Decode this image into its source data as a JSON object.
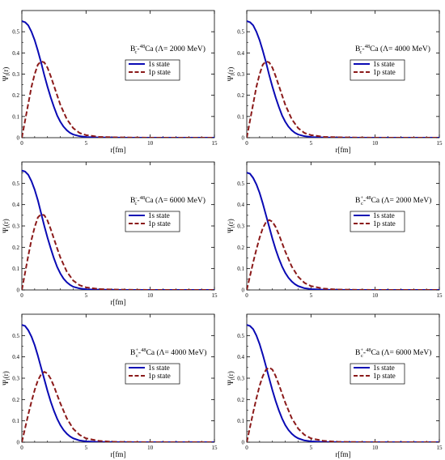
{
  "chart_data": [
    {
      "type": "line",
      "annotation": {
        "base": "B",
        "sup1": "-",
        "sub": "c",
        "mid": "-",
        "sup2": "48",
        "rest": "Ca (Λ= 2000 MeV)"
      },
      "xlabel": "r[fm]",
      "ylabel": {
        "main": "Ψ",
        "sub": "l",
        "rest": "(r)"
      },
      "xlim": [
        0,
        15
      ],
      "ylim": [
        0,
        0.6
      ],
      "xticks": [
        "0",
        "5",
        "10",
        "15"
      ],
      "yticks": [
        "0",
        "0.1",
        "0.2",
        "0.3",
        "0.4",
        "0.5"
      ],
      "legend_position": "right-middle",
      "series": [
        {
          "name": "1s state",
          "color": "#0a0ab4",
          "dash": "solid",
          "x": [
            0,
            0.25,
            0.5,
            0.75,
            1,
            1.25,
            1.5,
            1.75,
            2,
            2.25,
            2.5,
            2.75,
            3,
            3.25,
            3.5,
            3.75,
            4,
            4.5,
            5,
            6,
            8,
            10,
            15
          ],
          "values": [
            0.55,
            0.545,
            0.53,
            0.5,
            0.46,
            0.41,
            0.355,
            0.295,
            0.24,
            0.19,
            0.145,
            0.105,
            0.075,
            0.052,
            0.035,
            0.023,
            0.015,
            0.007,
            0.003,
            0.001,
            0,
            0,
            0
          ]
        },
        {
          "name": "1p state",
          "color": "#8b1a1a",
          "dash": "dashed",
          "x": [
            0,
            0.25,
            0.5,
            0.75,
            1,
            1.25,
            1.5,
            1.75,
            2,
            2.25,
            2.5,
            2.75,
            3,
            3.5,
            4,
            4.5,
            5,
            6,
            7,
            8,
            10,
            15
          ],
          "values": [
            0,
            0.08,
            0.16,
            0.24,
            0.3,
            0.345,
            0.36,
            0.355,
            0.33,
            0.29,
            0.245,
            0.2,
            0.155,
            0.088,
            0.045,
            0.022,
            0.012,
            0.004,
            0.002,
            0.001,
            0,
            0
          ]
        }
      ]
    },
    {
      "type": "line",
      "annotation": {
        "base": "B",
        "sup1": "-",
        "sub": "c",
        "mid": "-",
        "sup2": "48",
        "rest": "Ca (Λ= 4000 MeV)"
      },
      "xlabel": "r[fm]",
      "ylabel": {
        "main": "Ψ",
        "sub": "l",
        "rest": "(r)"
      },
      "xlim": [
        0,
        15
      ],
      "ylim": [
        0,
        0.6
      ],
      "xticks": [
        "0",
        "5",
        "10",
        "15"
      ],
      "yticks": [
        "0",
        "0.1",
        "0.2",
        "0.3",
        "0.4",
        "0.5"
      ],
      "legend_position": "right-middle",
      "series": [
        {
          "name": "1s state",
          "color": "#0a0ab4",
          "dash": "solid",
          "x": [
            0,
            0.25,
            0.5,
            0.75,
            1,
            1.25,
            1.5,
            1.75,
            2,
            2.25,
            2.5,
            2.75,
            3,
            3.25,
            3.5,
            3.75,
            4,
            4.5,
            5,
            6,
            8,
            10,
            15
          ],
          "values": [
            0.55,
            0.545,
            0.53,
            0.5,
            0.46,
            0.41,
            0.355,
            0.295,
            0.24,
            0.19,
            0.145,
            0.105,
            0.075,
            0.052,
            0.035,
            0.023,
            0.015,
            0.007,
            0.003,
            0.001,
            0,
            0,
            0
          ]
        },
        {
          "name": "1p state",
          "color": "#8b1a1a",
          "dash": "dashed",
          "x": [
            0,
            0.25,
            0.5,
            0.75,
            1,
            1.25,
            1.5,
            1.75,
            2,
            2.25,
            2.5,
            2.75,
            3,
            3.5,
            4,
            4.5,
            5,
            6,
            7,
            8,
            10,
            15
          ],
          "values": [
            0,
            0.08,
            0.16,
            0.24,
            0.3,
            0.345,
            0.36,
            0.355,
            0.33,
            0.29,
            0.245,
            0.2,
            0.155,
            0.088,
            0.045,
            0.022,
            0.012,
            0.004,
            0.002,
            0.001,
            0,
            0
          ]
        }
      ]
    },
    {
      "type": "line",
      "annotation": {
        "base": "B",
        "sup1": "-",
        "sub": "c",
        "mid": "-",
        "sup2": "48",
        "rest": "Ca (Λ= 6000 MeV)"
      },
      "xlabel": "r[fm]",
      "ylabel": {
        "main": "Ψ",
        "sub": "l",
        "rest": "(r)"
      },
      "xlim": [
        0,
        15
      ],
      "ylim": [
        0,
        0.6
      ],
      "xticks": [
        "0",
        "5",
        "10",
        "15"
      ],
      "yticks": [
        "0",
        "0.1",
        "0.2",
        "0.3",
        "0.4",
        "0.5"
      ],
      "legend_position": "right-middle",
      "series": [
        {
          "name": "1s state",
          "color": "#0a0ab4",
          "dash": "solid",
          "x": [
            0,
            0.25,
            0.5,
            0.75,
            1,
            1.25,
            1.5,
            1.75,
            2,
            2.25,
            2.5,
            2.75,
            3,
            3.25,
            3.5,
            3.75,
            4,
            4.5,
            5,
            6,
            8,
            10,
            15
          ],
          "values": [
            0.56,
            0.555,
            0.54,
            0.51,
            0.47,
            0.42,
            0.36,
            0.3,
            0.245,
            0.195,
            0.148,
            0.108,
            0.077,
            0.053,
            0.036,
            0.024,
            0.015,
            0.007,
            0.003,
            0.001,
            0,
            0,
            0
          ]
        },
        {
          "name": "1p state",
          "color": "#8b1a1a",
          "dash": "dashed",
          "x": [
            0,
            0.25,
            0.5,
            0.75,
            1,
            1.25,
            1.5,
            1.75,
            2,
            2.25,
            2.5,
            2.75,
            3,
            3.5,
            4,
            4.5,
            5,
            6,
            7,
            8,
            10,
            15
          ],
          "values": [
            0,
            0.08,
            0.16,
            0.235,
            0.295,
            0.34,
            0.355,
            0.35,
            0.325,
            0.285,
            0.24,
            0.195,
            0.152,
            0.086,
            0.044,
            0.022,
            0.012,
            0.004,
            0.002,
            0.001,
            0,
            0
          ]
        }
      ]
    },
    {
      "type": "line",
      "annotation": {
        "base": "B",
        "sup1": "+",
        "sub": "c",
        "mid": "-",
        "sup2": "48",
        "rest": "Ca (Λ= 2000 MeV)"
      },
      "xlabel": "",
      "ylabel": {
        "main": "Ψ",
        "sub": "l",
        "rest": "(r)"
      },
      "xlim": [
        0,
        15
      ],
      "ylim": [
        0,
        0.6
      ],
      "xticks": [
        "0",
        "5",
        "10",
        "15"
      ],
      "yticks": [
        "0",
        "0.1",
        "0.2",
        "0.3",
        "0.4",
        "0.5"
      ],
      "legend_position": "right-middle",
      "series": [
        {
          "name": "1s state",
          "color": "#0a0ab4",
          "dash": "solid",
          "x": [
            0,
            0.25,
            0.5,
            0.75,
            1,
            1.25,
            1.5,
            1.75,
            2,
            2.25,
            2.5,
            2.75,
            3,
            3.25,
            3.5,
            3.75,
            4,
            4.5,
            5,
            6,
            8,
            10,
            15
          ],
          "values": [
            0.55,
            0.545,
            0.525,
            0.495,
            0.455,
            0.405,
            0.35,
            0.295,
            0.24,
            0.19,
            0.147,
            0.11,
            0.08,
            0.057,
            0.04,
            0.027,
            0.018,
            0.008,
            0.004,
            0.001,
            0,
            0,
            0
          ]
        },
        {
          "name": "1p state",
          "color": "#8b1a1a",
          "dash": "dashed",
          "x": [
            0,
            0.25,
            0.5,
            0.75,
            1,
            1.25,
            1.5,
            1.75,
            2,
            2.25,
            2.5,
            2.75,
            3,
            3.5,
            4,
            4.5,
            5,
            6,
            7,
            8,
            10,
            15
          ],
          "values": [
            0,
            0.065,
            0.13,
            0.19,
            0.245,
            0.29,
            0.318,
            0.328,
            0.32,
            0.295,
            0.26,
            0.22,
            0.18,
            0.11,
            0.062,
            0.033,
            0.018,
            0.006,
            0.002,
            0.001,
            0,
            0
          ]
        }
      ]
    },
    {
      "type": "line",
      "annotation": {
        "base": "B",
        "sup1": "+",
        "sub": "c",
        "mid": "-",
        "sup2": "48",
        "rest": "Ca (Λ= 4000 MeV)"
      },
      "xlabel": "r[fm]",
      "ylabel": {
        "main": "Ψ",
        "sub": "l",
        "rest": "(r)"
      },
      "xlim": [
        0,
        15
      ],
      "ylim": [
        0,
        0.6
      ],
      "xticks": [
        "0",
        "5",
        "10",
        "15"
      ],
      "yticks": [
        "0",
        "0.1",
        "0.2",
        "0.3",
        "0.4",
        "0.5"
      ],
      "legend_position": "right-middle",
      "series": [
        {
          "name": "1s state",
          "color": "#0a0ab4",
          "dash": "solid",
          "x": [
            0,
            0.25,
            0.5,
            0.75,
            1,
            1.25,
            1.5,
            1.75,
            2,
            2.25,
            2.5,
            2.75,
            3,
            3.25,
            3.5,
            3.75,
            4,
            4.5,
            5,
            6,
            8,
            10,
            15
          ],
          "values": [
            0.55,
            0.545,
            0.525,
            0.495,
            0.455,
            0.405,
            0.35,
            0.295,
            0.24,
            0.19,
            0.147,
            0.11,
            0.08,
            0.057,
            0.04,
            0.027,
            0.018,
            0.008,
            0.004,
            0.001,
            0,
            0,
            0
          ]
        },
        {
          "name": "1p state",
          "color": "#8b1a1a",
          "dash": "dashed",
          "x": [
            0,
            0.25,
            0.5,
            0.75,
            1,
            1.25,
            1.5,
            1.75,
            2,
            2.25,
            2.5,
            2.75,
            3,
            3.5,
            4,
            4.5,
            5,
            6,
            7,
            8,
            10,
            15
          ],
          "values": [
            0,
            0.065,
            0.13,
            0.19,
            0.245,
            0.29,
            0.318,
            0.33,
            0.322,
            0.297,
            0.262,
            0.222,
            0.182,
            0.112,
            0.063,
            0.034,
            0.018,
            0.006,
            0.002,
            0.001,
            0,
            0
          ]
        }
      ]
    },
    {
      "type": "line",
      "annotation": {
        "base": "B",
        "sup1": "+",
        "sub": "c",
        "mid": "-",
        "sup2": "48",
        "rest": "Ca (Λ= 6000 MeV)"
      },
      "xlabel": "r[fm]",
      "ylabel": {
        "main": "Ψ",
        "sub": "l",
        "rest": "(r)"
      },
      "xlim": [
        0,
        15
      ],
      "ylim": [
        0,
        0.6
      ],
      "xticks": [
        "0",
        "5",
        "10",
        "15"
      ],
      "yticks": [
        "0",
        "0.1",
        "0.2",
        "0.3",
        "0.4",
        "0.5"
      ],
      "legend_position": "right-middle",
      "series": [
        {
          "name": "1s state",
          "color": "#0a0ab4",
          "dash": "solid",
          "x": [
            0,
            0.25,
            0.5,
            0.75,
            1,
            1.25,
            1.5,
            1.75,
            2,
            2.25,
            2.5,
            2.75,
            3,
            3.25,
            3.5,
            3.75,
            4,
            4.5,
            5,
            6,
            8,
            10,
            15
          ],
          "values": [
            0.55,
            0.545,
            0.53,
            0.5,
            0.46,
            0.41,
            0.355,
            0.298,
            0.243,
            0.193,
            0.149,
            0.111,
            0.08,
            0.057,
            0.04,
            0.027,
            0.018,
            0.008,
            0.004,
            0.001,
            0,
            0,
            0
          ]
        },
        {
          "name": "1p state",
          "color": "#8b1a1a",
          "dash": "dashed",
          "x": [
            0,
            0.25,
            0.5,
            0.75,
            1,
            1.25,
            1.5,
            1.75,
            2,
            2.25,
            2.5,
            2.75,
            3,
            3.5,
            4,
            4.5,
            5,
            6,
            7,
            8,
            10,
            15
          ],
          "values": [
            0,
            0.07,
            0.14,
            0.205,
            0.265,
            0.31,
            0.34,
            0.35,
            0.34,
            0.31,
            0.27,
            0.228,
            0.185,
            0.113,
            0.064,
            0.034,
            0.018,
            0.006,
            0.002,
            0.001,
            0,
            0
          ]
        }
      ]
    }
  ]
}
